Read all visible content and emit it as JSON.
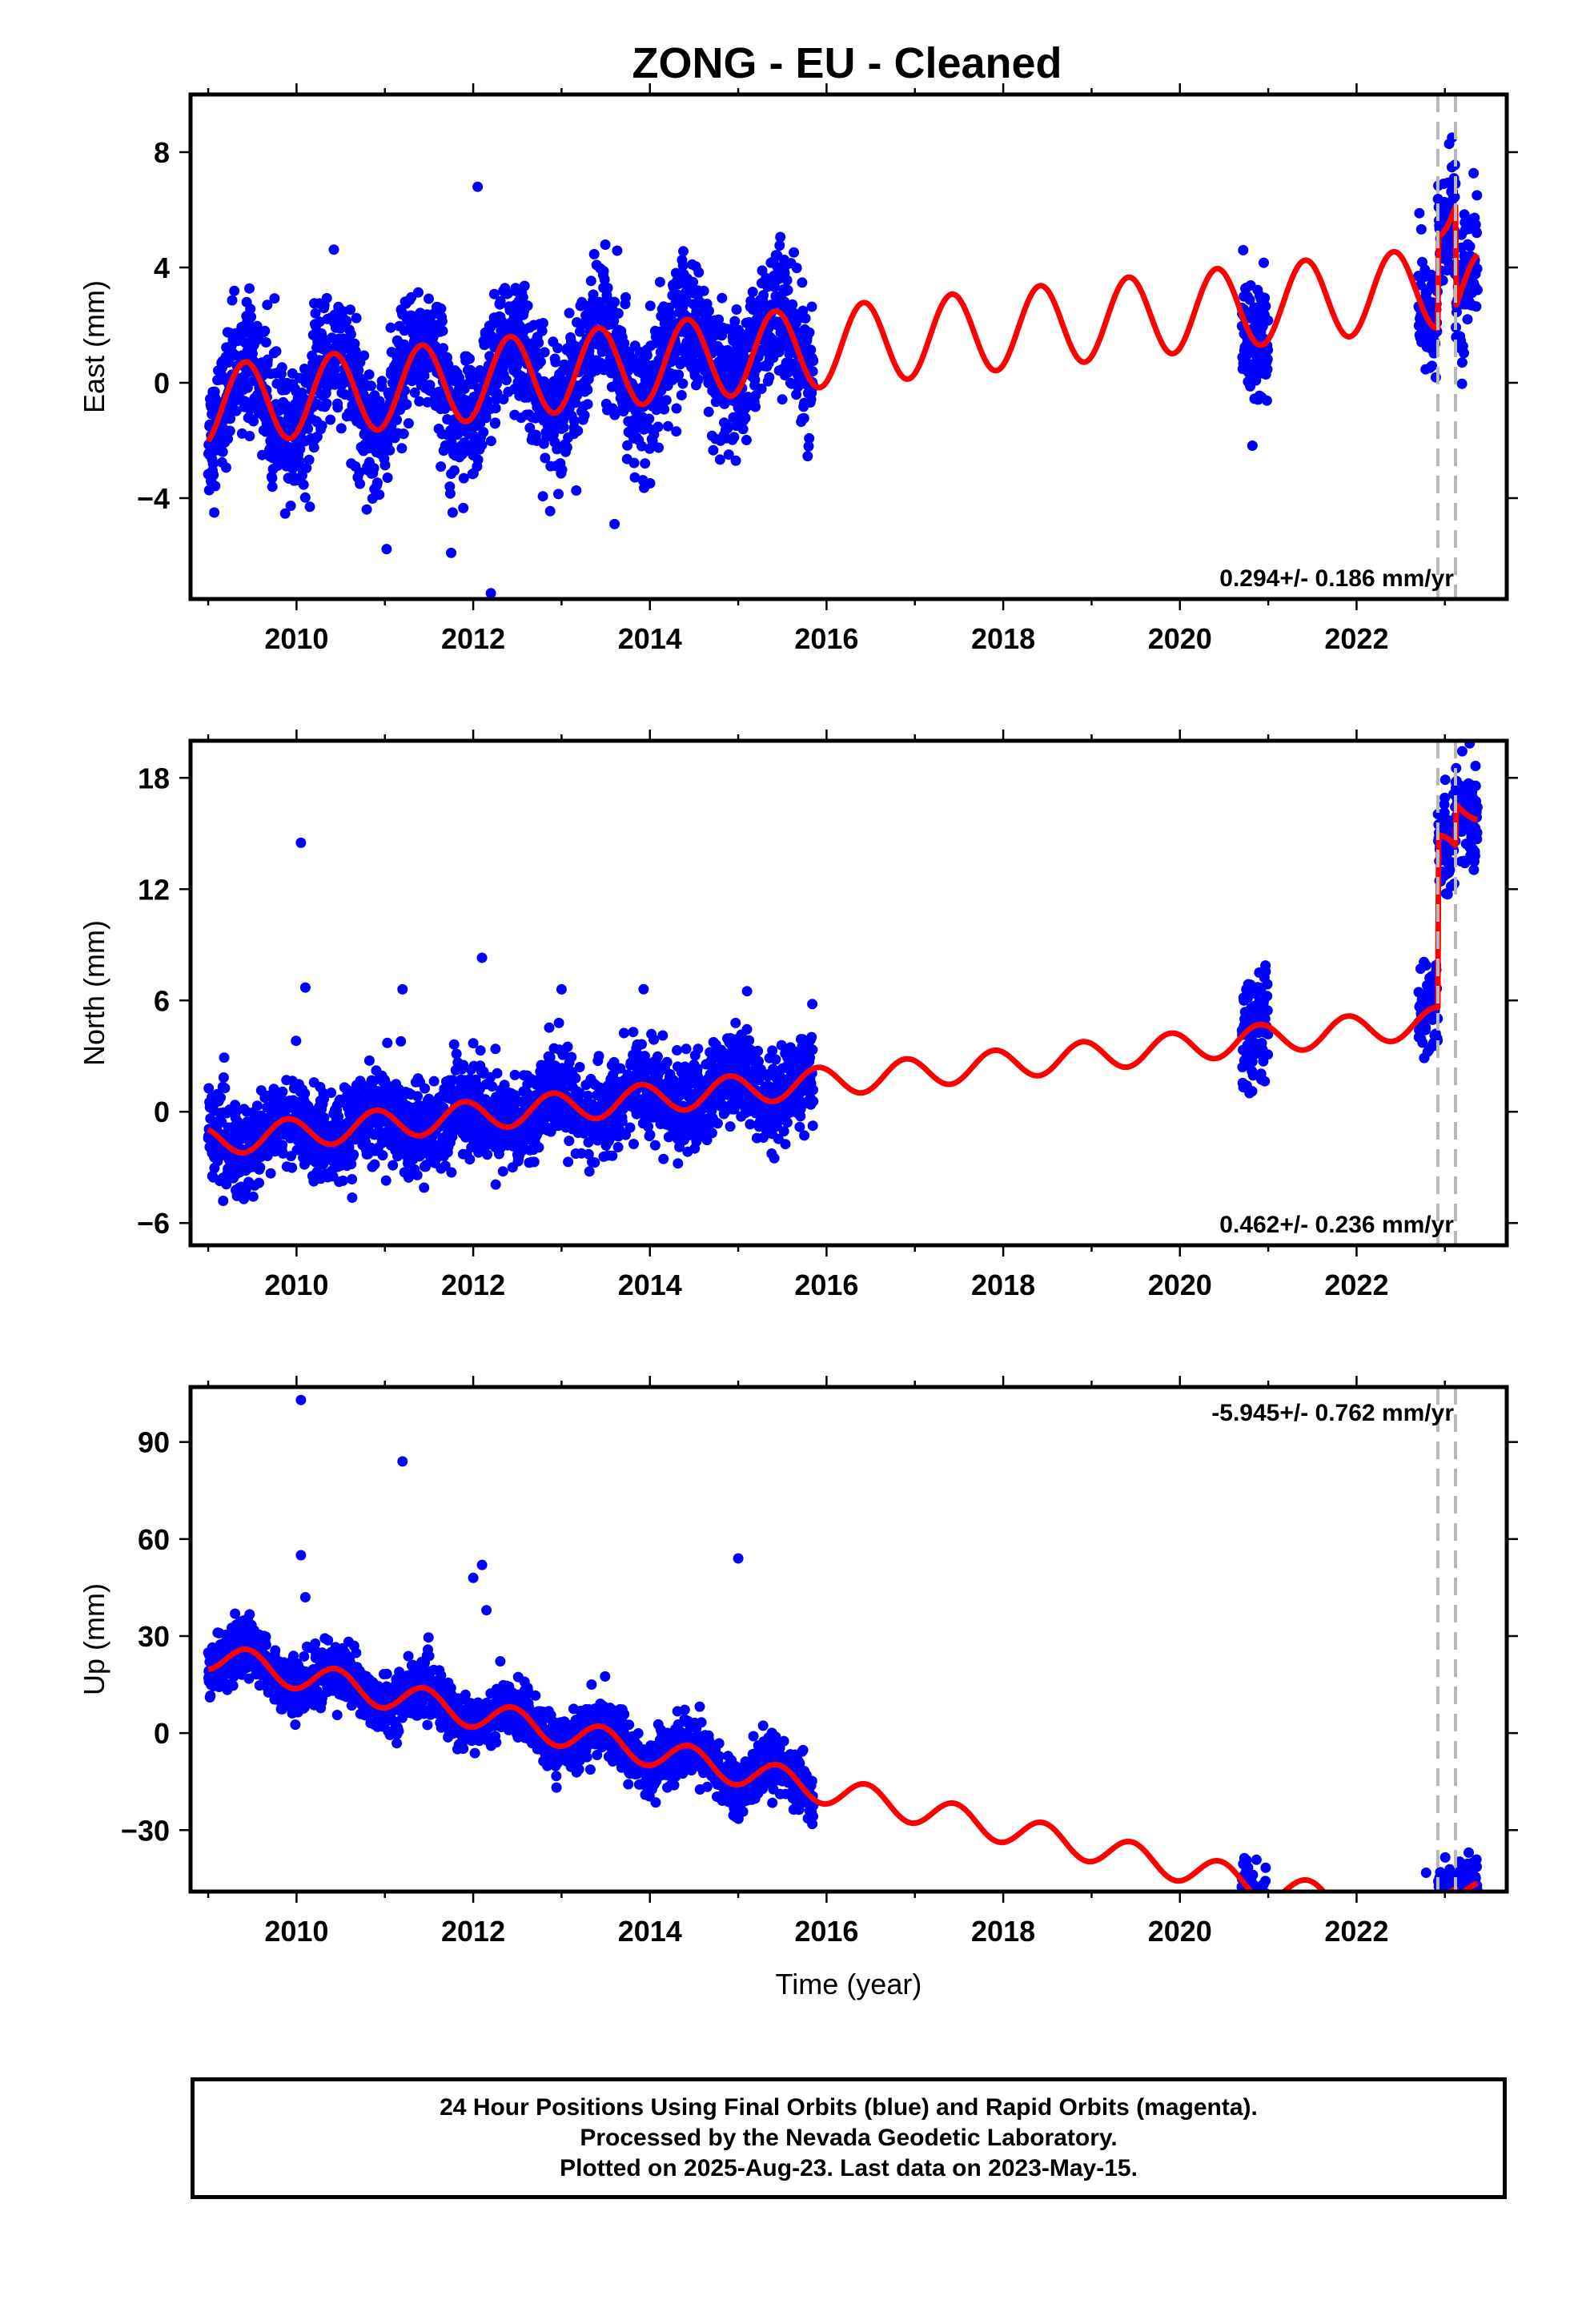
{
  "title": "ZONG  - EU - Cleaned",
  "colors": {
    "data_points": "#0000ff",
    "model_line": "#ff0000",
    "offset_lines": "#b8b8b8",
    "frame": "#000000"
  },
  "chart_data": [
    {
      "type": "scatter",
      "component": "east",
      "ylabel": "East (mm)",
      "xlabel": "",
      "xlim": [
        2008.8,
        2023.7
      ],
      "ylim": [
        -7.5,
        10.0
      ],
      "xticks": [
        2010,
        2012,
        2014,
        2016,
        2018,
        2020,
        2022
      ],
      "yticks": [
        -4,
        0,
        4,
        8
      ],
      "rate_label": "0.294+/- 0.186 mm/yr",
      "rate_label_position": "bottom-right",
      "offset_lines": [
        2022.92,
        2023.12
      ],
      "model": {
        "amplitude": 1.4,
        "phase_peak": 2009.42,
        "trend_mm_per_yr": 0.294,
        "base_2009": -0.8,
        "post_2020_accel": 0.45,
        "offset_2022_92": 3.2,
        "offset_2023_12": -3.5
      },
      "data_segments": [
        {
          "start": 2009.0,
          "end": 2015.85,
          "scatter": 1.1
        },
        {
          "start": 2020.7,
          "end": 2021.0,
          "scatter": 1.1
        },
        {
          "start": 2022.7,
          "end": 2023.37,
          "scatter": 1.1
        }
      ],
      "outliers": [
        [
          2012.05,
          6.8
        ],
        [
          2012.2,
          -7.3
        ],
        [
          2011.75,
          -5.9
        ],
        [
          2013.6,
          -4.9
        ]
      ]
    },
    {
      "type": "scatter",
      "component": "north",
      "ylabel": "North (mm)",
      "xlabel": "",
      "xlim": [
        2008.8,
        2023.7
      ],
      "ylim": [
        -7.2,
        20.0
      ],
      "xticks": [
        2010,
        2012,
        2014,
        2016,
        2018,
        2020,
        2022
      ],
      "yticks": [
        -6,
        0,
        6,
        12,
        18
      ],
      "rate_label": "0.462+/- 0.236 mm/yr",
      "rate_label_position": "bottom-right",
      "offset_lines": [
        2022.92,
        2023.12
      ],
      "model": {
        "amplitude": 0.8,
        "phase_peak": 2009.9,
        "trend_mm_per_yr": 0.462,
        "base_2009": -1.6,
        "offset_2022_92": 9.3,
        "offset_2023_12": 2.2
      },
      "data_segments": [
        {
          "start": 2009.0,
          "end": 2015.85,
          "scatter": 1.2
        },
        {
          "start": 2020.7,
          "end": 2021.0,
          "scatter": 1.6
        },
        {
          "start": 2022.7,
          "end": 2023.37,
          "scatter": 1.3
        }
      ],
      "outliers": [
        [
          2010.05,
          14.5
        ],
        [
          2012.1,
          8.3
        ],
        [
          2010.1,
          6.7
        ],
        [
          2011.2,
          6.6
        ],
        [
          2013.0,
          6.6
        ],
        [
          2015.1,
          6.5
        ]
      ]
    },
    {
      "type": "scatter",
      "component": "up",
      "ylabel": "Up (mm)",
      "xlabel": "Time (year)",
      "xlim": [
        2008.8,
        2023.7
      ],
      "ylim": [
        -49.0,
        107.0
      ],
      "xticks": [
        2010,
        2012,
        2014,
        2016,
        2018,
        2020,
        2022
      ],
      "yticks": [
        -30,
        0,
        30,
        60,
        90
      ],
      "rate_label": "-5.945+/- 0.762 mm/yr",
      "rate_label_position": "top-right",
      "offset_lines": [
        2022.92,
        2023.12
      ],
      "model": {
        "amplitude": 4.5,
        "phase_peak": 2009.45,
        "trend_mm_per_yr": -5.945,
        "base_2009": 24.0,
        "offset_2022_92": 14.0,
        "offset_2023_12": -3.0
      },
      "data_segments": [
        {
          "start": 2009.0,
          "end": 2015.85,
          "scatter": 4.2
        },
        {
          "start": 2020.7,
          "end": 2021.0,
          "scatter": 4.0
        },
        {
          "start": 2022.7,
          "end": 2023.37,
          "scatter": 4.0
        }
      ],
      "outliers": [
        [
          2010.05,
          103
        ],
        [
          2011.2,
          84
        ],
        [
          2010.05,
          55
        ],
        [
          2012.1,
          52
        ],
        [
          2012.0,
          48
        ],
        [
          2015.0,
          54
        ],
        [
          2010.1,
          42
        ],
        [
          2012.15,
          38
        ]
      ]
    }
  ],
  "footer": {
    "line1": "24 Hour Positions Using Final Orbits (blue) and Rapid Orbits (magenta).",
    "line2": "Processed by the Nevada Geodetic Laboratory.",
    "line3": "Plotted on 2025-Aug-23. Last data on 2023-May-15."
  }
}
